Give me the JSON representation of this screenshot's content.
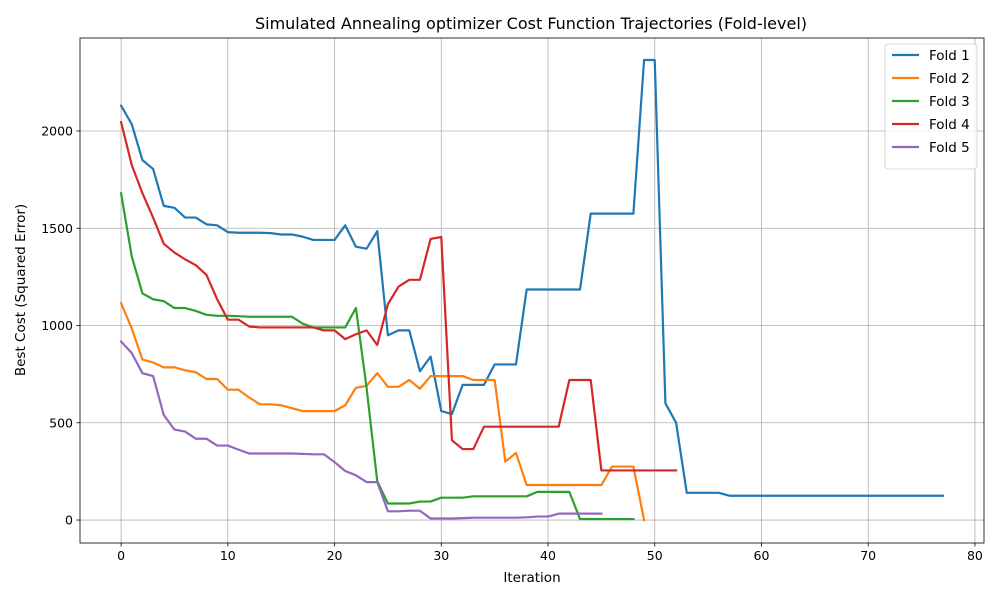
{
  "chart_data": {
    "type": "line",
    "title": "Simulated Annealing optimizer Cost Function Trajectories (Fold-level)",
    "xlabel": "Iteration",
    "ylabel": "Best Cost (Squared Error)",
    "xlim": [
      -3.85,
      80.85
    ],
    "ylim": [
      -118,
      2478
    ],
    "xticks": [
      0,
      10,
      20,
      30,
      40,
      50,
      60,
      70,
      80
    ],
    "yticks": [
      0,
      500,
      1000,
      1500,
      2000
    ],
    "grid": true,
    "legend": "top-right",
    "series": [
      {
        "name": "Fold 1",
        "color": "#1f77b4",
        "values": [
          2130,
          2035,
          1850,
          1805,
          1615,
          1605,
          1555,
          1555,
          1520,
          1515,
          1480,
          1477,
          1477,
          1477,
          1475,
          1468,
          1468,
          1457,
          1440,
          1440,
          1440,
          1515,
          1405,
          1395,
          1485,
          950,
          975,
          975,
          765,
          840,
          560,
          545,
          695,
          695,
          695,
          800,
          800,
          800,
          1185,
          1185,
          1185,
          1185,
          1185,
          1185,
          1575,
          1575,
          1575,
          1575,
          1575,
          2365,
          2365,
          600,
          500,
          140,
          140,
          140,
          140,
          125,
          125,
          125,
          125,
          125,
          125,
          125,
          125,
          125,
          125,
          125,
          125,
          125,
          125,
          125,
          125,
          125,
          125,
          125,
          125,
          125
        ]
      },
      {
        "name": "Fold 2",
        "color": "#ff7f0e",
        "values": [
          1115,
          985,
          825,
          810,
          785,
          785,
          770,
          760,
          725,
          725,
          670,
          670,
          630,
          595,
          595,
          590,
          575,
          560,
          560,
          560,
          560,
          590,
          680,
          690,
          755,
          685,
          685,
          720,
          675,
          740,
          740,
          740,
          740,
          720,
          720,
          720,
          300,
          345,
          180,
          180,
          180,
          180,
          180,
          180,
          180,
          180,
          275,
          275,
          275,
          0
        ]
      },
      {
        "name": "Fold 3",
        "color": "#2ca02c",
        "values": [
          1680,
          1355,
          1165,
          1135,
          1125,
          1090,
          1090,
          1075,
          1055,
          1050,
          1050,
          1048,
          1045,
          1045,
          1045,
          1045,
          1045,
          1010,
          990,
          990,
          990,
          990,
          1090,
          680,
          200,
          85,
          85,
          85,
          95,
          95,
          115,
          115,
          115,
          122,
          122,
          122,
          122,
          122,
          122,
          145,
          145,
          145,
          145,
          5,
          5,
          5,
          5,
          5,
          5
        ]
      },
      {
        "name": "Fold 4",
        "color": "#d62728",
        "values": [
          2045,
          1825,
          1680,
          1555,
          1420,
          1375,
          1340,
          1310,
          1260,
          1135,
          1030,
          1030,
          995,
          990,
          990,
          990,
          990,
          990,
          990,
          975,
          975,
          930,
          955,
          975,
          900,
          1110,
          1200,
          1235,
          1235,
          1445,
          1455,
          410,
          365,
          365,
          480,
          480,
          480,
          480,
          480,
          480,
          480,
          480,
          720,
          720,
          720,
          255,
          255,
          255,
          255,
          255,
          255,
          255,
          255
        ]
      },
      {
        "name": "Fold 5",
        "color": "#9467bd",
        "values": [
          918,
          858,
          755,
          740,
          540,
          465,
          455,
          418,
          418,
          383,
          383,
          362,
          342,
          342,
          342,
          342,
          342,
          340,
          338,
          338,
          298,
          252,
          230,
          195,
          195,
          45,
          45,
          48,
          48,
          8,
          8,
          8,
          10,
          12,
          12,
          12,
          12,
          12,
          14,
          18,
          18,
          33,
          33,
          33,
          33,
          33
        ]
      }
    ]
  }
}
